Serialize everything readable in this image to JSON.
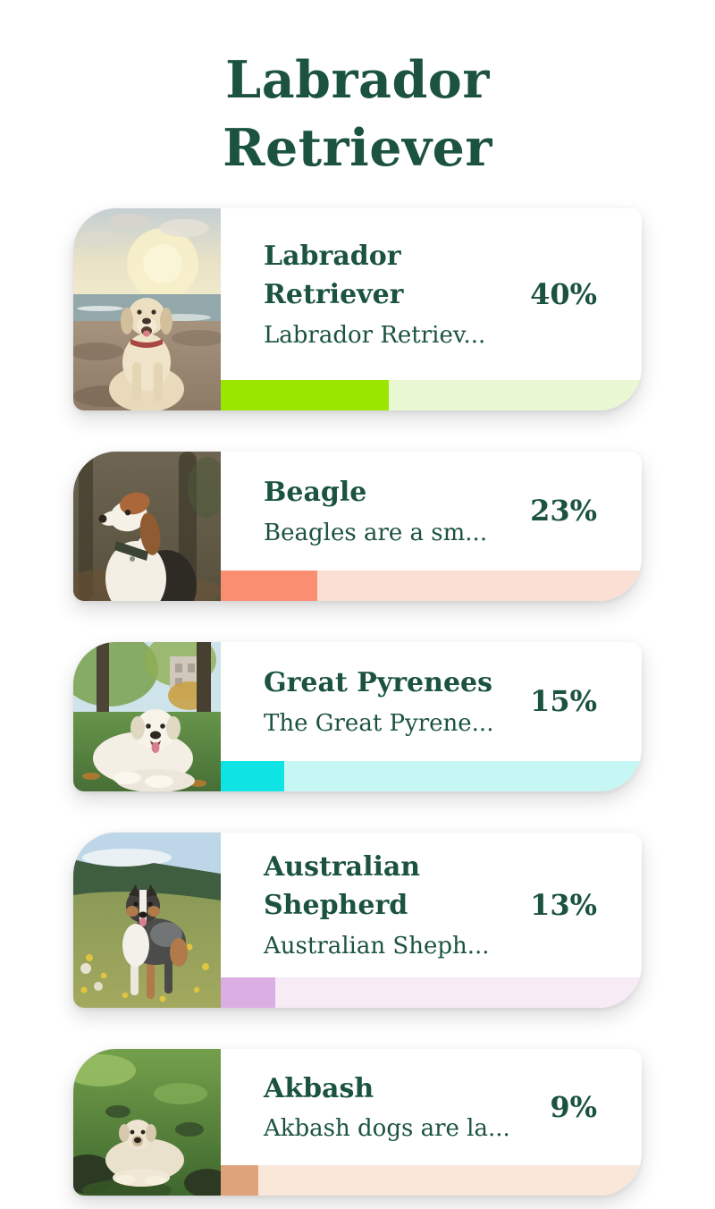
{
  "page": {
    "title": "Labrador\nRetriever"
  },
  "colors": {
    "text_green": "#1b5340"
  },
  "cards": [
    {
      "name": "Labrador Retriever",
      "description": "Labrador Retriev...",
      "percent_label": "40%",
      "percent_value": 40,
      "bar_fill": "#9ae600",
      "bar_track": "#e9f8d2",
      "photo": "labrador-on-beach"
    },
    {
      "name": "Beagle",
      "description": "Beagles are a sm...",
      "percent_label": "23%",
      "percent_value": 23,
      "bar_fill": "#fa8e70",
      "bar_track": "#fbdfd5",
      "photo": "beagle-in-forest"
    },
    {
      "name": "Great Pyrenees",
      "description": "The Great Pyrene...",
      "percent_label": "15%",
      "percent_value": 15,
      "bar_fill": "#0fe3e3",
      "bar_track": "#c7f7f4",
      "photo": "great-pyrenees-in-park"
    },
    {
      "name": "Australian Shepherd",
      "description": "Australian Sheph...",
      "percent_label": "13%",
      "percent_value": 13,
      "bar_fill": "#dcafe4",
      "bar_track": "#f7ebf6",
      "photo": "australian-shepherd-in-meadow"
    },
    {
      "name": "Akbash",
      "description": "Akbash dogs are la...",
      "percent_label": "9%",
      "percent_value": 9,
      "bar_fill": "#dfa37b",
      "bar_track": "#f9e7da",
      "photo": "akbash-on-grass"
    }
  ]
}
